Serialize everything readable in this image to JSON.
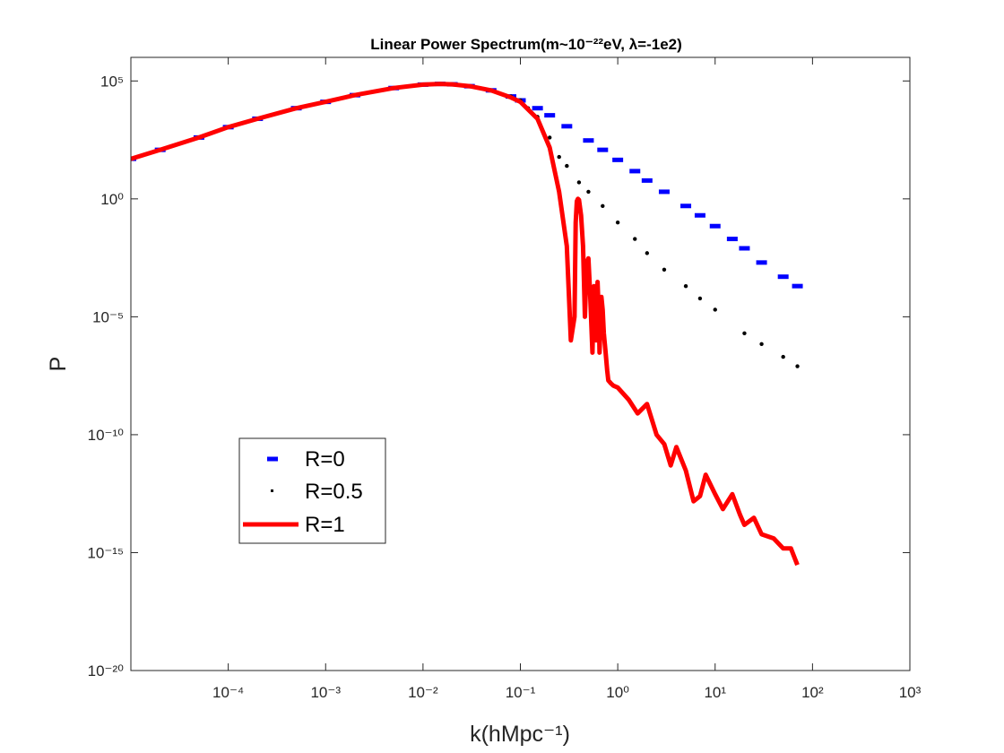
{
  "chart_data": {
    "type": "line",
    "title": "Linear Power Spectrum(m~10⁻²²eV, λ=-1e2)",
    "xlabel": "k(hMpc⁻¹)",
    "ylabel": "P",
    "x_scale": "log",
    "y_scale": "log",
    "xlim": [
      1e-05,
      1000
    ],
    "ylim": [
      1e-20,
      1000000.0
    ],
    "x_ticks": [
      0.0001,
      0.001,
      0.01,
      0.1,
      1,
      10,
      100,
      1000
    ],
    "x_tick_labels": [
      "10⁻⁴",
      "10⁻³",
      "10⁻²",
      "10⁻¹",
      "10⁰",
      "10¹",
      "10²",
      "10³"
    ],
    "y_ticks": [
      1e-20,
      1e-15,
      1e-10,
      1e-05,
      1,
      100000.0
    ],
    "y_tick_labels": [
      "10⁻²⁰",
      "10⁻¹⁵",
      "10⁻¹⁰",
      "10⁻⁵",
      "10⁰",
      "10⁵"
    ],
    "grid": false,
    "legend_position": "lower-left",
    "series": [
      {
        "name": "R=0",
        "color": "#0000ff",
        "marker": "dash",
        "x": [
          1e-05,
          2e-05,
          5e-05,
          0.0001,
          0.0002,
          0.0005,
          0.001,
          0.002,
          0.005,
          0.01,
          0.015,
          0.02,
          0.03,
          0.05,
          0.08,
          0.1,
          0.15,
          0.2,
          0.3,
          0.5,
          0.7,
          1,
          1.5,
          2,
          3,
          5,
          7,
          10,
          15,
          20,
          30,
          50,
          70
        ],
        "y": [
          50,
          120,
          400,
          1100,
          2500,
          7000,
          13000,
          25000,
          50000,
          70000,
          75000,
          72000,
          60000,
          40000,
          22000,
          15000,
          7000,
          3500,
          1200,
          300,
          120,
          45,
          15,
          6,
          2,
          0.5,
          0.2,
          0.07,
          0.02,
          0.008,
          0.002,
          0.0005,
          0.0002
        ]
      },
      {
        "name": "R=0.5",
        "color": "#000000",
        "marker": "dot",
        "x": [
          1e-05,
          2e-05,
          5e-05,
          0.0001,
          0.0002,
          0.0005,
          0.001,
          0.002,
          0.005,
          0.01,
          0.015,
          0.02,
          0.03,
          0.05,
          0.08,
          0.1,
          0.12,
          0.15,
          0.2,
          0.25,
          0.3,
          0.4,
          0.5,
          0.7,
          1,
          1.5,
          2,
          3,
          5,
          7,
          10,
          20,
          30,
          50,
          70
        ],
        "y": [
          50,
          120,
          400,
          1100,
          2500,
          7000,
          13000,
          25000,
          50000,
          70000,
          75000,
          72000,
          60000,
          40000,
          22000,
          15000,
          7000,
          3000,
          400,
          60,
          25,
          5,
          2,
          0.5,
          0.1,
          0.02,
          0.005,
          0.001,
          0.0002,
          6e-05,
          2e-05,
          2e-06,
          7e-07,
          2e-07,
          8e-08
        ]
      },
      {
        "name": "R=1",
        "color": "#ff0000",
        "marker": "thick-line",
        "x": [
          1e-05,
          2e-05,
          5e-05,
          0.0001,
          0.0002,
          0.0005,
          0.001,
          0.002,
          0.005,
          0.01,
          0.015,
          0.02,
          0.03,
          0.05,
          0.08,
          0.1,
          0.15,
          0.2,
          0.25,
          0.3,
          0.33,
          0.36,
          0.37,
          0.38,
          0.39,
          0.4,
          0.42,
          0.44,
          0.46,
          0.48,
          0.5,
          0.52,
          0.55,
          0.57,
          0.59,
          0.6,
          0.62,
          0.64,
          0.65,
          0.67,
          0.68,
          0.7,
          0.72,
          0.75,
          0.78,
          0.8,
          0.85,
          0.9,
          1,
          1.3,
          1.6,
          2,
          2.5,
          3,
          3.5,
          4,
          5,
          6,
          7,
          8,
          10,
          12,
          15,
          18,
          20,
          25,
          30,
          40,
          50,
          60,
          70
        ],
        "y": [
          50,
          120,
          400,
          1100,
          2500,
          7000,
          13000,
          25000,
          50000,
          70000,
          75000,
          72000,
          60000,
          40000,
          20000,
          13000,
          2500,
          150,
          2,
          0.01,
          1e-06,
          1e-05,
          0.1,
          0.8,
          1,
          0.9,
          0.2,
          0.01,
          1e-05,
          0.002,
          0.003,
          0.0001,
          3e-07,
          0.0002,
          3e-05,
          1e-06,
          0.0003,
          1e-05,
          3e-07,
          2e-05,
          7e-05,
          2e-05,
          2e-06,
          3e-07,
          5e-08,
          2e-08,
          1.5e-08,
          1.2e-08,
          1e-08,
          3e-09,
          8e-10,
          2e-09,
          1e-10,
          4e-11,
          5e-12,
          3e-11,
          3e-12,
          1.5e-13,
          2.5e-13,
          2e-12,
          3e-13,
          7e-14,
          3e-13,
          4e-14,
          1.5e-14,
          3e-14,
          6e-15,
          4e-15,
          1.5e-15,
          1.5e-15,
          3e-16
        ]
      }
    ]
  }
}
